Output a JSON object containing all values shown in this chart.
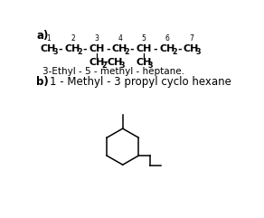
{
  "bg_color": "#ffffff",
  "label_a": "a)",
  "label_b": "b)",
  "name_a": "3-Ethyl - 5 - methyl - heptane.",
  "name_b": "1 - Methyl - 3 propyl cyclo hexane",
  "chain_numbers": [
    "1",
    "2",
    "3",
    "4",
    "5",
    "6",
    "7"
  ],
  "subs": [
    "3",
    "2",
    "",
    "2",
    "",
    "2",
    "3"
  ],
  "fig_width": 2.92,
  "fig_height": 2.41,
  "dpi": 100
}
